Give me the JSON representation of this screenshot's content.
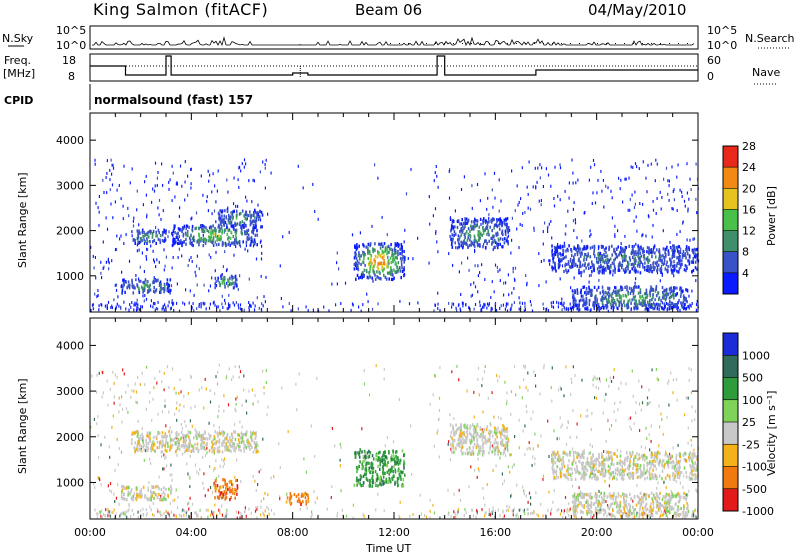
{
  "header": {
    "station": "King Salmon (fitACF)",
    "beam": "Beam 06",
    "date": "04/May/2010"
  },
  "summary_panel": {
    "nsky_label": "N.Sky",
    "nsky_ticks": [
      "10^5",
      "10^0"
    ],
    "nsearch_label": "N.Search",
    "nsearch_ticks": [
      "10^5",
      "10^0"
    ],
    "freq_label": "Freq.",
    "freq_unit": "[MHz]",
    "freq_ticks": [
      "18",
      "8"
    ],
    "nave_label": "Nave",
    "nave_ticks": [
      "60",
      "0"
    ],
    "cpid_label": "CPID",
    "cpid_value": "normalsound (fast) 157"
  },
  "chart_data": [
    {
      "type": "heatmap",
      "name": "power",
      "ylabel": "Slant Range [km]",
      "xlim_hours": [
        0,
        24
      ],
      "ylim": [
        200,
        4600
      ],
      "yticks": [
        "1000",
        "2000",
        "3000",
        "4000"
      ],
      "colorbar": {
        "label": "Power [dB]",
        "ticks": [
          "4",
          "8",
          "12",
          "16",
          "20",
          "24",
          "28"
        ],
        "colors": [
          "#0a1cff",
          "#3a52c8",
          "#3f8f6a",
          "#49c04a",
          "#e6c21e",
          "#f08a14",
          "#e8281a"
        ]
      },
      "features": [
        {
          "t0": 1.6,
          "t1": 3.0,
          "r0": 1750,
          "r1": 2050,
          "level": 2
        },
        {
          "t0": 3.2,
          "t1": 6.6,
          "r0": 1700,
          "r1": 2150,
          "level": 3
        },
        {
          "t0": 5.0,
          "t1": 6.8,
          "r0": 2100,
          "r1": 2500,
          "level": 2
        },
        {
          "t0": 1.2,
          "t1": 3.2,
          "r0": 650,
          "r1": 950,
          "level": 2
        },
        {
          "t0": 4.9,
          "t1": 5.8,
          "r0": 750,
          "r1": 1050,
          "level": 3
        },
        {
          "t0": 10.4,
          "t1": 12.4,
          "r0": 950,
          "r1": 1750,
          "level": 5
        },
        {
          "t0": 14.2,
          "t1": 16.5,
          "r0": 1650,
          "r1": 2300,
          "level": 2
        },
        {
          "t0": 18.2,
          "t1": 24.0,
          "r0": 1100,
          "r1": 1700,
          "level": 1
        },
        {
          "t0": 19.0,
          "t1": 23.6,
          "r0": 300,
          "r1": 800,
          "level": 2
        }
      ]
    },
    {
      "type": "heatmap",
      "name": "velocity",
      "xlabel": "Time UT",
      "ylabel": "Slant Range [km]",
      "xlim_hours": [
        0,
        24
      ],
      "ylim": [
        200,
        4600
      ],
      "xticks": [
        "00:00",
        "04:00",
        "08:00",
        "12:00",
        "16:00",
        "20:00",
        "00:00"
      ],
      "yticks": [
        "1000",
        "2000",
        "3000",
        "4000"
      ],
      "colorbar": {
        "label": "Velocity [m s⁻¹]",
        "ticks": [
          "1000",
          "500",
          "100",
          "25",
          "-25",
          "-100",
          "-500",
          "-1000"
        ],
        "colors": [
          "#1a2bd8",
          "#2f6a5a",
          "#2e9c3a",
          "#7fd35a",
          "#c8c8c8",
          "#f3b21a",
          "#f07a10",
          "#e21a1a"
        ]
      },
      "features": [
        {
          "t0": 1.6,
          "t1": 6.6,
          "r0": 1700,
          "r1": 2150,
          "color": 4
        },
        {
          "t0": 1.2,
          "t1": 3.2,
          "r0": 650,
          "r1": 950,
          "color": 4
        },
        {
          "t0": 4.9,
          "t1": 5.8,
          "r0": 650,
          "r1": 1100,
          "color": 6
        },
        {
          "t0": 7.7,
          "t1": 8.6,
          "r0": 550,
          "r1": 800,
          "color": 6
        },
        {
          "t0": 10.4,
          "t1": 12.4,
          "r0": 950,
          "r1": 1750,
          "color": 2
        },
        {
          "t0": 14.2,
          "t1": 16.5,
          "r0": 1650,
          "r1": 2300,
          "color": 4
        },
        {
          "t0": 18.2,
          "t1": 24.0,
          "r0": 1100,
          "r1": 1700,
          "color": 4
        },
        {
          "t0": 19.0,
          "t1": 23.6,
          "r0": 300,
          "r1": 800,
          "color": 4
        }
      ]
    }
  ]
}
